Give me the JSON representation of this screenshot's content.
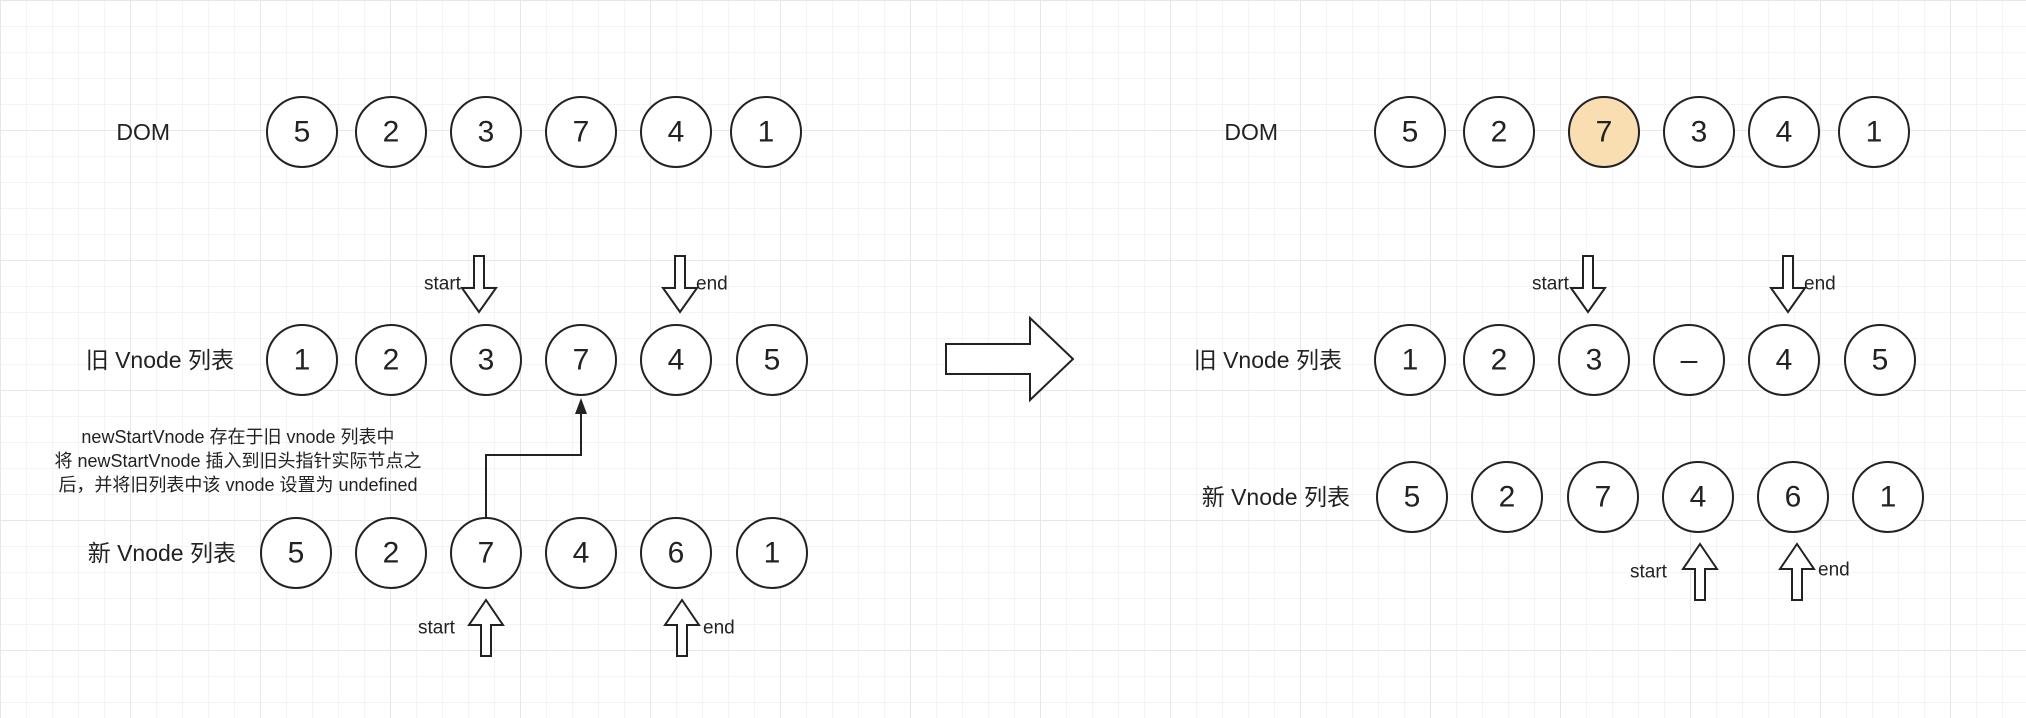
{
  "left": {
    "dom": {
      "label": "DOM",
      "nodes": [
        "5",
        "2",
        "3",
        "7",
        "4",
        "1"
      ]
    },
    "old_list": {
      "label": "旧 Vnode 列表",
      "nodes": [
        "1",
        "2",
        "3",
        "7",
        "4",
        "5"
      ]
    },
    "new_list": {
      "label": "新 Vnode 列表",
      "nodes": [
        "5",
        "2",
        "7",
        "4",
        "6",
        "1"
      ]
    },
    "old_start_label": "start",
    "old_end_label": "end",
    "new_start_label": "start",
    "new_end_label": "end",
    "note_lines": [
      "newStartVnode 存在于旧 vnode 列表中",
      "将 newStartVnode 插入到旧头指针实际节点之",
      "后，并将旧列表中该 vnode 设置为 undefined"
    ]
  },
  "right": {
    "dom": {
      "label": "DOM",
      "nodes": [
        "5",
        "2",
        "7",
        "3",
        "4",
        "1"
      ],
      "highlight_index": 2,
      "highlight_color": "#f8deb1"
    },
    "old_list": {
      "label": "旧 Vnode 列表",
      "nodes": [
        "1",
        "2",
        "3",
        "–",
        "4",
        "5"
      ]
    },
    "new_list": {
      "label": "新 Vnode 列表",
      "nodes": [
        "5",
        "2",
        "7",
        "4",
        "6",
        "1"
      ]
    },
    "old_start_label": "start",
    "old_end_label": "end",
    "new_start_label": "start",
    "new_end_label": "end"
  }
}
